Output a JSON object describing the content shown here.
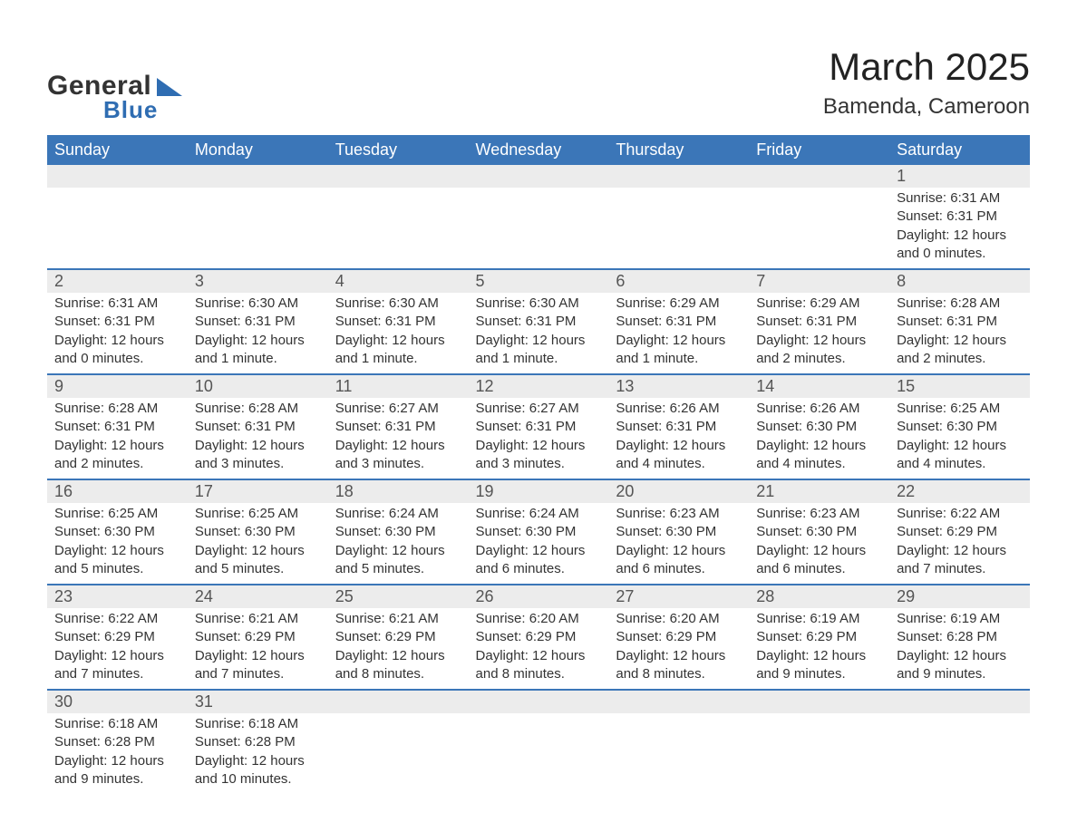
{
  "logo": {
    "general": "General",
    "blue": "Blue"
  },
  "title": "March 2025",
  "location": "Bamenda, Cameroon",
  "colors": {
    "header_bg": "#3b76b8",
    "header_text": "#ffffff",
    "daynum_bg": "#ececec",
    "row_divider": "#3b76b8",
    "text": "#333333",
    "logo_blue": "#2f6db2"
  },
  "day_names": [
    "Sunday",
    "Monday",
    "Tuesday",
    "Wednesday",
    "Thursday",
    "Friday",
    "Saturday"
  ],
  "weeks": [
    {
      "nums": [
        "",
        "",
        "",
        "",
        "",
        "",
        "1"
      ],
      "cells": [
        {},
        {},
        {},
        {},
        {},
        {},
        {
          "sunrise": "Sunrise: 6:31 AM",
          "sunset": "Sunset: 6:31 PM",
          "daylight": "Daylight: 12 hours and 0 minutes."
        }
      ]
    },
    {
      "nums": [
        "2",
        "3",
        "4",
        "5",
        "6",
        "7",
        "8"
      ],
      "cells": [
        {
          "sunrise": "Sunrise: 6:31 AM",
          "sunset": "Sunset: 6:31 PM",
          "daylight": "Daylight: 12 hours and 0 minutes."
        },
        {
          "sunrise": "Sunrise: 6:30 AM",
          "sunset": "Sunset: 6:31 PM",
          "daylight": "Daylight: 12 hours and 1 minute."
        },
        {
          "sunrise": "Sunrise: 6:30 AM",
          "sunset": "Sunset: 6:31 PM",
          "daylight": "Daylight: 12 hours and 1 minute."
        },
        {
          "sunrise": "Sunrise: 6:30 AM",
          "sunset": "Sunset: 6:31 PM",
          "daylight": "Daylight: 12 hours and 1 minute."
        },
        {
          "sunrise": "Sunrise: 6:29 AM",
          "sunset": "Sunset: 6:31 PM",
          "daylight": "Daylight: 12 hours and 1 minute."
        },
        {
          "sunrise": "Sunrise: 6:29 AM",
          "sunset": "Sunset: 6:31 PM",
          "daylight": "Daylight: 12 hours and 2 minutes."
        },
        {
          "sunrise": "Sunrise: 6:28 AM",
          "sunset": "Sunset: 6:31 PM",
          "daylight": "Daylight: 12 hours and 2 minutes."
        }
      ]
    },
    {
      "nums": [
        "9",
        "10",
        "11",
        "12",
        "13",
        "14",
        "15"
      ],
      "cells": [
        {
          "sunrise": "Sunrise: 6:28 AM",
          "sunset": "Sunset: 6:31 PM",
          "daylight": "Daylight: 12 hours and 2 minutes."
        },
        {
          "sunrise": "Sunrise: 6:28 AM",
          "sunset": "Sunset: 6:31 PM",
          "daylight": "Daylight: 12 hours and 3 minutes."
        },
        {
          "sunrise": "Sunrise: 6:27 AM",
          "sunset": "Sunset: 6:31 PM",
          "daylight": "Daylight: 12 hours and 3 minutes."
        },
        {
          "sunrise": "Sunrise: 6:27 AM",
          "sunset": "Sunset: 6:31 PM",
          "daylight": "Daylight: 12 hours and 3 minutes."
        },
        {
          "sunrise": "Sunrise: 6:26 AM",
          "sunset": "Sunset: 6:31 PM",
          "daylight": "Daylight: 12 hours and 4 minutes."
        },
        {
          "sunrise": "Sunrise: 6:26 AM",
          "sunset": "Sunset: 6:30 PM",
          "daylight": "Daylight: 12 hours and 4 minutes."
        },
        {
          "sunrise": "Sunrise: 6:25 AM",
          "sunset": "Sunset: 6:30 PM",
          "daylight": "Daylight: 12 hours and 4 minutes."
        }
      ]
    },
    {
      "nums": [
        "16",
        "17",
        "18",
        "19",
        "20",
        "21",
        "22"
      ],
      "cells": [
        {
          "sunrise": "Sunrise: 6:25 AM",
          "sunset": "Sunset: 6:30 PM",
          "daylight": "Daylight: 12 hours and 5 minutes."
        },
        {
          "sunrise": "Sunrise: 6:25 AM",
          "sunset": "Sunset: 6:30 PM",
          "daylight": "Daylight: 12 hours and 5 minutes."
        },
        {
          "sunrise": "Sunrise: 6:24 AM",
          "sunset": "Sunset: 6:30 PM",
          "daylight": "Daylight: 12 hours and 5 minutes."
        },
        {
          "sunrise": "Sunrise: 6:24 AM",
          "sunset": "Sunset: 6:30 PM",
          "daylight": "Daylight: 12 hours and 6 minutes."
        },
        {
          "sunrise": "Sunrise: 6:23 AM",
          "sunset": "Sunset: 6:30 PM",
          "daylight": "Daylight: 12 hours and 6 minutes."
        },
        {
          "sunrise": "Sunrise: 6:23 AM",
          "sunset": "Sunset: 6:30 PM",
          "daylight": "Daylight: 12 hours and 6 minutes."
        },
        {
          "sunrise": "Sunrise: 6:22 AM",
          "sunset": "Sunset: 6:29 PM",
          "daylight": "Daylight: 12 hours and 7 minutes."
        }
      ]
    },
    {
      "nums": [
        "23",
        "24",
        "25",
        "26",
        "27",
        "28",
        "29"
      ],
      "cells": [
        {
          "sunrise": "Sunrise: 6:22 AM",
          "sunset": "Sunset: 6:29 PM",
          "daylight": "Daylight: 12 hours and 7 minutes."
        },
        {
          "sunrise": "Sunrise: 6:21 AM",
          "sunset": "Sunset: 6:29 PM",
          "daylight": "Daylight: 12 hours and 7 minutes."
        },
        {
          "sunrise": "Sunrise: 6:21 AM",
          "sunset": "Sunset: 6:29 PM",
          "daylight": "Daylight: 12 hours and 8 minutes."
        },
        {
          "sunrise": "Sunrise: 6:20 AM",
          "sunset": "Sunset: 6:29 PM",
          "daylight": "Daylight: 12 hours and 8 minutes."
        },
        {
          "sunrise": "Sunrise: 6:20 AM",
          "sunset": "Sunset: 6:29 PM",
          "daylight": "Daylight: 12 hours and 8 minutes."
        },
        {
          "sunrise": "Sunrise: 6:19 AM",
          "sunset": "Sunset: 6:29 PM",
          "daylight": "Daylight: 12 hours and 9 minutes."
        },
        {
          "sunrise": "Sunrise: 6:19 AM",
          "sunset": "Sunset: 6:28 PM",
          "daylight": "Daylight: 12 hours and 9 minutes."
        }
      ]
    },
    {
      "nums": [
        "30",
        "31",
        "",
        "",
        "",
        "",
        ""
      ],
      "cells": [
        {
          "sunrise": "Sunrise: 6:18 AM",
          "sunset": "Sunset: 6:28 PM",
          "daylight": "Daylight: 12 hours and 9 minutes."
        },
        {
          "sunrise": "Sunrise: 6:18 AM",
          "sunset": "Sunset: 6:28 PM",
          "daylight": "Daylight: 12 hours and 10 minutes."
        },
        {},
        {},
        {},
        {},
        {}
      ]
    }
  ]
}
